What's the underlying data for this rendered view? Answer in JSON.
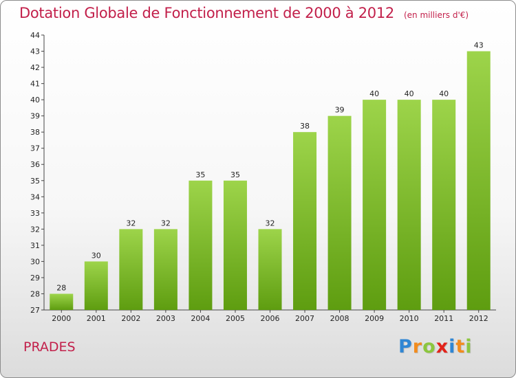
{
  "header": {
    "title": "Dotation Globale de Fonctionnement de 2000 à 2012",
    "unit": "(en milliers d'€)"
  },
  "footer": {
    "commune": "PRADES",
    "logo_letters": [
      {
        "ch": "P",
        "color": "#2f86d4"
      },
      {
        "ch": "r",
        "color": "#f28c1e"
      },
      {
        "ch": "o",
        "color": "#8cc63f"
      },
      {
        "ch": "x",
        "color": "#e2231a"
      },
      {
        "ch": "i",
        "color": "#2f86d4"
      },
      {
        "ch": "t",
        "color": "#f28c1e"
      },
      {
        "ch": "i",
        "color": "#8cc63f"
      }
    ]
  },
  "chart_data": {
    "type": "bar",
    "categories": [
      "2000",
      "2001",
      "2002",
      "2003",
      "2004",
      "2005",
      "2006",
      "2007",
      "2008",
      "2009",
      "2010",
      "2011",
      "2012"
    ],
    "values": [
      28,
      30,
      32,
      32,
      35,
      35,
      32,
      38,
      39,
      40,
      40,
      40,
      43
    ],
    "data_labels": [
      "28",
      "30",
      "32",
      "32",
      "35",
      "35",
      "32",
      "38",
      "39",
      "40",
      "40",
      "40",
      "43"
    ],
    "title": "Dotation Globale de Fonctionnement de 2000 à 2012",
    "xlabel": "",
    "ylabel": "",
    "ylim": [
      27,
      44
    ],
    "yticks": [
      27,
      28,
      29,
      30,
      31,
      32,
      33,
      34,
      35,
      36,
      37,
      38,
      39,
      40,
      41,
      42,
      43,
      44
    ],
    "grid": false,
    "bar_color_top": "#9dd44a",
    "bar_color_bottom": "#5e9d10"
  }
}
